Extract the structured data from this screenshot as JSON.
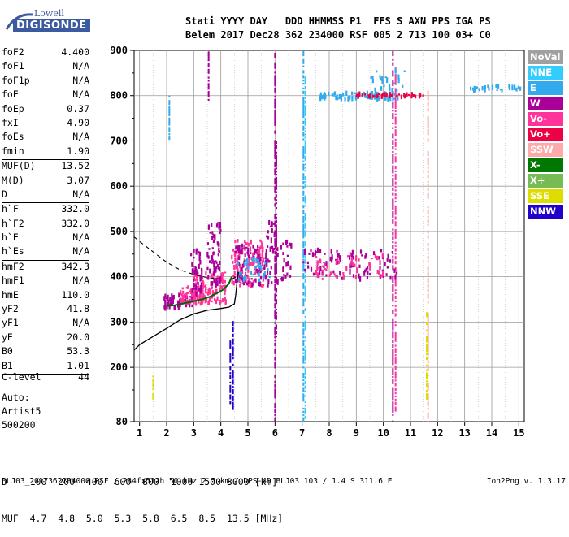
{
  "logo": {
    "top": "Lowell",
    "bottom": "DIGISONDE"
  },
  "header": {
    "line1": "Stati YYYY DAY   DDD HHMMSS P1  FFS S AXN PPS IGA PS",
    "line2": "Belem 2017 Dec28 362 234000 RSF 005 2 713 100 03+ C0"
  },
  "params": [
    {
      "name": "foF2",
      "value": "4.400"
    },
    {
      "name": "foF1",
      "value": "N/A"
    },
    {
      "name": "foF1p",
      "value": "N/A"
    },
    {
      "name": "foE",
      "value": "N/A"
    },
    {
      "name": "foEp",
      "value": "0.37"
    },
    {
      "name": "fxI",
      "value": "4.90"
    },
    {
      "name": "foEs",
      "value": "N/A"
    },
    {
      "name": "fmin",
      "value": "1.90"
    },
    {
      "name": "MUF(D)",
      "value": "13.52"
    },
    {
      "name": "M(D)",
      "value": "3.07"
    },
    {
      "name": "D",
      "value": "N/A"
    },
    {
      "name": "h`F",
      "value": "332.0"
    },
    {
      "name": "h`F2",
      "value": "332.0"
    },
    {
      "name": "h`E",
      "value": "N/A"
    },
    {
      "name": "h`Es",
      "value": "N/A"
    },
    {
      "name": "hmF2",
      "value": "342.3"
    },
    {
      "name": "hmF1",
      "value": "N/A"
    },
    {
      "name": "hmE",
      "value": "110.0"
    },
    {
      "name": "yF2",
      "value": "41.8"
    },
    {
      "name": "yF1",
      "value": "N/A"
    },
    {
      "name": "yE",
      "value": "20.0"
    },
    {
      "name": "B0",
      "value": "53.3"
    },
    {
      "name": "B1",
      "value": "1.01"
    }
  ],
  "clevel": {
    "name": "C-level",
    "value": "44"
  },
  "auto": {
    "line1": "Auto:",
    "line2": "Artist5",
    "line3": "500200"
  },
  "legend": [
    {
      "label": "NoVal",
      "color": "#a0a0a0"
    },
    {
      "label": "NNE",
      "color": "#33ccff"
    },
    {
      "label": "E",
      "color": "#33aaee"
    },
    {
      "label": "W",
      "color": "#aa0099"
    },
    {
      "label": "Vo-",
      "color": "#ff3399"
    },
    {
      "label": "Vo+",
      "color": "#ee0044"
    },
    {
      "label": "SSW",
      "color": "#ffaaaa"
    },
    {
      "label": "X-",
      "color": "#007700"
    },
    {
      "label": "X+",
      "color": "#77bb55"
    },
    {
      "label": "SSE",
      "color": "#dddd00"
    },
    {
      "label": "NNW",
      "color": "#2200cc"
    }
  ],
  "dtable": {
    "line1": "D    100  200  400  600  800  1000 1500 3000 [km]",
    "line2": "MUF  4.7  4.8  5.0  5.3  5.8  6.5  8.5  13.5 [MHz]"
  },
  "footer": "BLJ03_2017362234000.RSF / 284fx512h 50 kHz 2.5 km / DPS-4D BLJ03 103 / 1.4 S 311.6 E",
  "version": "Ion2Png v. 1.3.17",
  "chart_data": {
    "type": "scatter",
    "x_range": [
      0.8,
      15.2
    ],
    "y_range": [
      80,
      900
    ],
    "x_ticks": [
      1,
      2,
      3,
      4,
      5,
      6,
      7,
      8,
      9,
      10,
      11,
      12,
      13,
      14,
      15
    ],
    "y_ticks": [
      80,
      200,
      300,
      400,
      500,
      600,
      700,
      800,
      900
    ],
    "grid": true,
    "profile_solid": [
      [
        0.8,
        238
      ],
      [
        1.0,
        250
      ],
      [
        1.5,
        268
      ],
      [
        2.0,
        286
      ],
      [
        2.5,
        305
      ],
      [
        3.0,
        318
      ],
      [
        3.5,
        326
      ],
      [
        4.0,
        330
      ],
      [
        4.3,
        333
      ],
      [
        4.5,
        340
      ],
      [
        4.55,
        360
      ],
      [
        4.6,
        390
      ],
      [
        4.65,
        410
      ]
    ],
    "profile_dashed": [
      [
        0.8,
        488
      ],
      [
        1.0,
        478
      ],
      [
        1.5,
        455
      ],
      [
        2.0,
        432
      ],
      [
        2.5,
        415
      ],
      [
        3.0,
        405
      ],
      [
        3.5,
        398
      ],
      [
        4.0,
        395
      ],
      [
        4.4,
        395
      ],
      [
        4.6,
        400
      ]
    ],
    "trace": [
      [
        2.0,
        335
      ],
      [
        2.3,
        337
      ],
      [
        2.7,
        342
      ],
      [
        3.0,
        346
      ],
      [
        3.3,
        350
      ],
      [
        3.6,
        356
      ],
      [
        3.9,
        365
      ],
      [
        4.1,
        372
      ],
      [
        4.3,
        385
      ],
      [
        4.4,
        400
      ]
    ],
    "echo_clusters": [
      {
        "x": [
          1.9,
          3.0
        ],
        "y": [
          330,
          360
        ],
        "color": "W",
        "n": 60
      },
      {
        "x": [
          2.5,
          3.6
        ],
        "y": [
          340,
          380
        ],
        "color": "Vo-",
        "n": 80
      },
      {
        "x": [
          3.0,
          4.2
        ],
        "y": [
          340,
          410
        ],
        "color": "Vo-",
        "n": 90
      },
      {
        "x": [
          2.9,
          3.3
        ],
        "y": [
          360,
          460
        ],
        "color": "W",
        "n": 40
      },
      {
        "x": [
          3.5,
          4.0
        ],
        "y": [
          380,
          520
        ],
        "color": "W",
        "n": 60
      },
      {
        "x": [
          4.4,
          5.6
        ],
        "y": [
          380,
          480
        ],
        "color": "Vo-",
        "n": 110
      },
      {
        "x": [
          4.5,
          5.5
        ],
        "y": [
          380,
          470
        ],
        "color": "W",
        "n": 70
      },
      {
        "x": [
          4.6,
          5.8
        ],
        "y": [
          390,
          440
        ],
        "color": "E",
        "n": 40
      },
      {
        "x": [
          5.6,
          6.1
        ],
        "y": [
          380,
          520
        ],
        "color": "W",
        "n": 40
      },
      {
        "x": [
          6.2,
          6.6
        ],
        "y": [
          390,
          480
        ],
        "color": "W",
        "n": 25
      },
      {
        "x": [
          7.0,
          10.5
        ],
        "y": [
          395,
          460
        ],
        "color": "W",
        "n": 90
      },
      {
        "x": [
          7.5,
          10.0
        ],
        "y": [
          395,
          450
        ],
        "color": "Vo-",
        "n": 50
      },
      {
        "x": [
          7.6,
          10.6
        ],
        "y": [
          792,
          806
        ],
        "color": "E",
        "n": 90
      },
      {
        "x": [
          9.0,
          11.5
        ],
        "y": [
          797,
          804
        ],
        "color": "Vo+",
        "n": 40
      },
      {
        "x": [
          9.5,
          10.8
        ],
        "y": [
          810,
          860
        ],
        "color": "E",
        "n": 25
      },
      {
        "x": [
          13.2,
          15.1
        ],
        "y": [
          810,
          822
        ],
        "color": "E",
        "n": 30
      }
    ],
    "echo_columns": [
      {
        "x": 3.55,
        "y": [
          790,
          900
        ],
        "color": "W"
      },
      {
        "x": 4.45,
        "y": [
          100,
          300
        ],
        "color": "NNW"
      },
      {
        "x": 4.35,
        "y": [
          120,
          260
        ],
        "color": "NNW"
      },
      {
        "x": 6.0,
        "y": [
          80,
          900
        ],
        "color": "W"
      },
      {
        "x": 6.05,
        "y": [
          250,
          700
        ],
        "color": "W"
      },
      {
        "x": 7.05,
        "y": [
          80,
          900
        ],
        "color": "E"
      },
      {
        "x": 7.12,
        "y": [
          80,
          840
        ],
        "color": "NNE"
      },
      {
        "x": 10.35,
        "y": [
          80,
          900
        ],
        "color": "W"
      },
      {
        "x": 10.45,
        "y": [
          100,
          860
        ],
        "color": "Vo-"
      },
      {
        "x": 11.65,
        "y": [
          80,
          820
        ],
        "color": "SSW"
      },
      {
        "x": 11.6,
        "y": [
          130,
          320
        ],
        "color": "SSE"
      },
      {
        "x": 2.1,
        "y": [
          700,
          800
        ],
        "color": "E"
      },
      {
        "x": 1.5,
        "y": [
          130,
          180
        ],
        "color": "SSE"
      }
    ]
  }
}
